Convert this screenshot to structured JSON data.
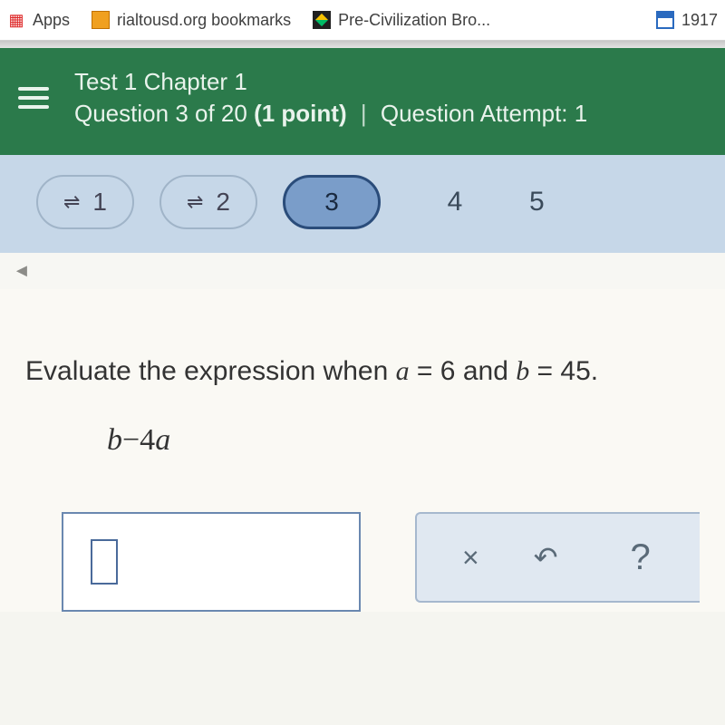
{
  "bookmarks": {
    "apps": "Apps",
    "rialto": "rialtousd.org bookmarks",
    "precivilization": "Pre-Civilization Bro...",
    "year": "1917"
  },
  "header": {
    "title": "Test 1 Chapter 1",
    "question_prefix": "Question",
    "question_num": "3",
    "question_total": "20",
    "points_text": "(1 point)",
    "attempt_label": "Question Attempt:",
    "attempt_num": "1"
  },
  "qnav": {
    "items": [
      {
        "n": "1",
        "done": true
      },
      {
        "n": "2",
        "done": true
      },
      {
        "n": "3",
        "current": true
      },
      {
        "n": "4",
        "plain": true
      },
      {
        "n": "5",
        "plain": true,
        "partial": true
      }
    ]
  },
  "question": {
    "prompt_pre": "Evaluate the expression when ",
    "a_var": "a",
    "a_val": "6",
    "b_var": "b",
    "b_val": "45",
    "expression_b": "b",
    "expression_mid": "−4",
    "expression_a": "a"
  },
  "tools": {
    "x": "×",
    "undo": "↶",
    "help": "?"
  },
  "colors": {
    "header_bg": "#2b7a4b",
    "qnav_bg": "#c6d7e8",
    "pill_current_bg": "#7a9dc9",
    "pill_current_border": "#2a4c7a",
    "content_bg": "#faf9f4"
  }
}
